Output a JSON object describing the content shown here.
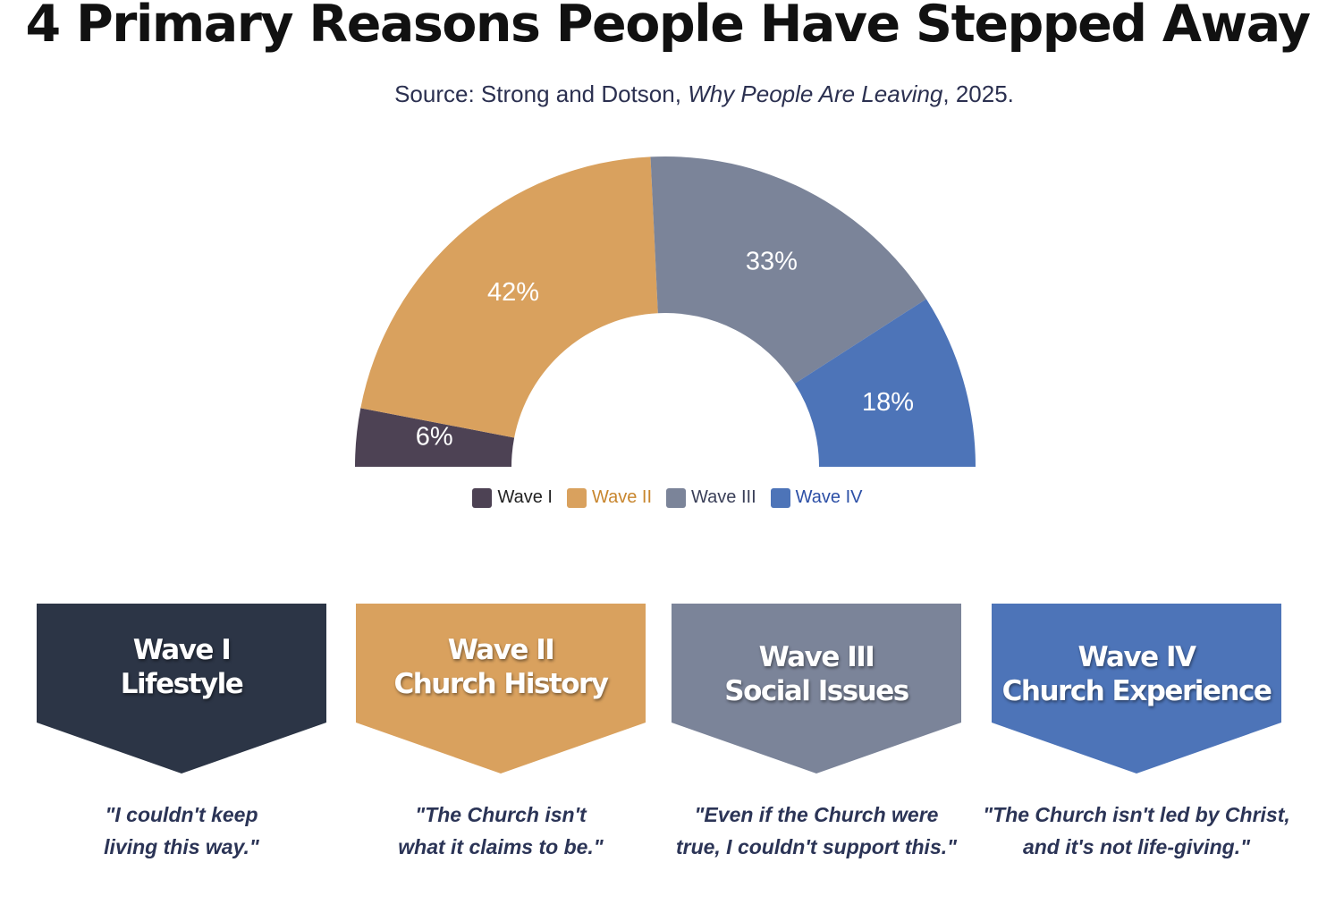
{
  "header": {
    "title": "4 Primary Reasons People Have Stepped Away",
    "source_prefix": "Source: Strong and Dotson, ",
    "source_work": "Why People Are Leaving",
    "source_suffix": ", 2025."
  },
  "chart_data": {
    "type": "pie",
    "variant": "half-donut",
    "categories": [
      "Wave I",
      "Wave II",
      "Wave III",
      "Wave IV"
    ],
    "values": [
      6,
      42,
      33,
      18
    ],
    "labels": [
      "6%",
      "42%",
      "33%",
      "18%"
    ],
    "colors": [
      "#4d4254",
      "#d9a15e",
      "#7b8499",
      "#4d74b8"
    ],
    "legend_text_colors": [
      "#222222",
      "#c8862e",
      "#3a3f58",
      "#2c4fa6"
    ],
    "legend": "bottom"
  },
  "cards": [
    {
      "title1": "Wave I",
      "title2": "Lifestyle",
      "color": "#2c3546",
      "quote1": "\"I couldn't keep",
      "quote2": "living this way.\""
    },
    {
      "title1": "Wave II",
      "title2": "Church History",
      "color": "#d9a15e",
      "quote1": "\"The Church isn't",
      "quote2": "what it claims to be.\""
    },
    {
      "title1": "Wave III",
      "title2": "Social Issues",
      "color": "#7b8499",
      "quote1": "\"Even if the Church were",
      "quote2": "true, I couldn't support this.\""
    },
    {
      "title1": "Wave IV",
      "title2": "Church Experience",
      "color": "#4d74b8",
      "quote1": "\"The Church isn't led by Christ,",
      "quote2": "and it's not life-giving.\""
    }
  ]
}
